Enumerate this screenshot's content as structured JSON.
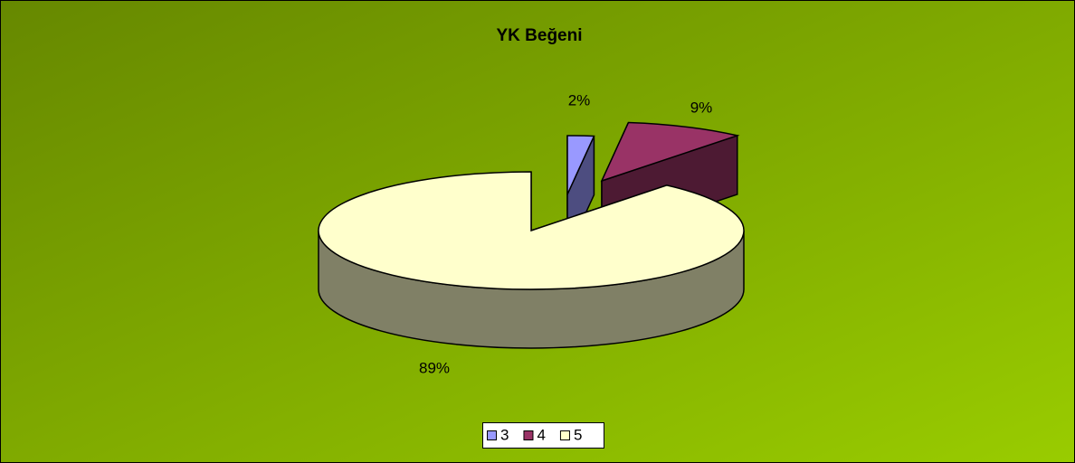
{
  "chart_data": {
    "type": "pie",
    "title": "YK Beğeni",
    "categories": [
      "3",
      "4",
      "5"
    ],
    "values": [
      2,
      9,
      89
    ],
    "value_labels": [
      "2%",
      "9%",
      "89%"
    ],
    "colors": [
      "#9999ff",
      "#993366",
      "#ffffcc"
    ],
    "legend": "bottom"
  }
}
